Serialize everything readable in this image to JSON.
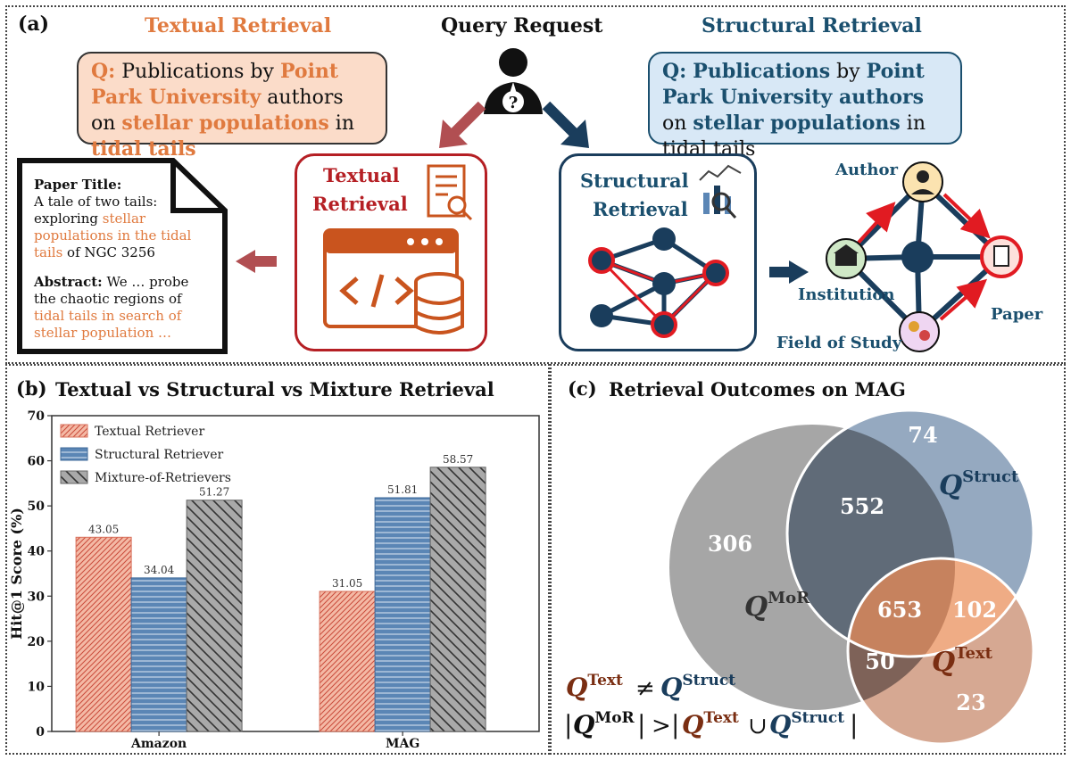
{
  "panel_a": {
    "label": "(a)",
    "textual_title": "Textual Retrieval",
    "query_title": "Query Request",
    "structural_title": "Structural Retrieval",
    "textual_query": [
      {
        "t": "Q:",
        "c": "orange"
      },
      {
        "t": " Publications by ",
        "c": "plain"
      },
      {
        "t": "Point Park University",
        "c": "orange"
      },
      {
        "t": " authors on ",
        "c": "plain"
      },
      {
        "t": "stellar populations",
        "c": "orange"
      },
      {
        "t": " in ",
        "c": "plain"
      },
      {
        "t": "tidal tails",
        "c": "orange"
      }
    ],
    "structural_query": [
      {
        "t": "Q:",
        "c": "blue"
      },
      {
        "t": " ",
        "c": "plain"
      },
      {
        "t": "Publications",
        "c": "blue"
      },
      {
        "t": " by ",
        "c": "plain"
      },
      {
        "t": "Point Park University authors",
        "c": "blue"
      },
      {
        "t": " on ",
        "c": "plain"
      },
      {
        "t": "stellar populations",
        "c": "blue"
      },
      {
        "t": " in tidal tails",
        "c": "plain"
      }
    ],
    "paper_title_label": "Paper Title:",
    "paper_title_parts": [
      {
        "t": "A tale of two tails: exploring ",
        "c": "plain"
      },
      {
        "t": "stellar populations in the tidal tails",
        "c": "hl"
      },
      {
        "t": " of NGC 3256",
        "c": "plain"
      }
    ],
    "abstract_label": "Abstract:",
    "abstract_parts": [
      {
        "t": " We … probe the chaotic regions of ",
        "c": "plain"
      },
      {
        "t": "tidal tails in search of stellar population …",
        "c": "hl"
      }
    ],
    "textual_box_label_1": "Textual",
    "textual_box_label_2": "Retrieval",
    "structural_box_label_1": "Structural",
    "structural_box_label_2": "Retrieval",
    "graph_labels": {
      "author": "Author",
      "institution": "Institution",
      "paper": "Paper",
      "field": "Field of Study"
    }
  },
  "panel_b": {
    "label": "(b)",
    "title": "Textual vs Structural vs Mixture Retrieval"
  },
  "panel_c": {
    "label": "(c)",
    "title": "Retrieval Outcomes on MAG",
    "regions": {
      "mor_only": "306",
      "mor_struct": "552",
      "struct_only": "74",
      "all_three": "653",
      "struct_text": "102",
      "mor_text": "50",
      "text_only": "23"
    },
    "set_labels": {
      "mor": {
        "base": "Q",
        "sup": "MoR"
      },
      "struct": {
        "base": "Q",
        "sup": "Struct"
      },
      "text": {
        "base": "Q",
        "sup": "Text"
      }
    },
    "formula_neq": "≠",
    "formula_gt": ">",
    "formula_union": "∪",
    "formula_bar": "|"
  },
  "chart_data": {
    "type": "bar",
    "categories": [
      "Amazon",
      "MAG"
    ],
    "series": [
      {
        "name": "Textual Retriever",
        "values": [
          43.05,
          31.05
        ],
        "color": "#f4b9a5"
      },
      {
        "name": "Structural Retriever",
        "values": [
          34.04,
          51.81
        ],
        "color": "#5b86b5"
      },
      {
        "name": "Mixture-of-Retrievers",
        "values": [
          51.27,
          58.57
        ],
        "color": "#a9a9a9"
      }
    ],
    "ylabel": "Hit@1 Score (%)",
    "xlabel": "",
    "ylim": [
      0,
      70
    ],
    "yticks": [
      0,
      10,
      20,
      30,
      40,
      50,
      60,
      70
    ],
    "legend": "top-left"
  },
  "colors": {
    "orange": "#e07a3f",
    "red": "#b51f24",
    "navy": "#1a3d5c",
    "orange_box_bg": "#fbdcc9",
    "blue_box_bg": "#d8e8f6"
  }
}
